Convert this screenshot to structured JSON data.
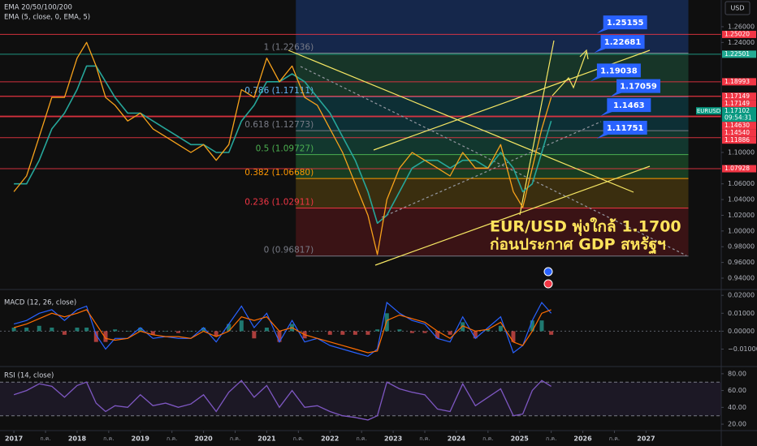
{
  "chart_data": {
    "type": "line",
    "currency": "USD",
    "x": [
      2017.0,
      2017.2,
      2017.4,
      2017.6,
      2017.8,
      2018.0,
      2018.15,
      2018.3,
      2018.45,
      2018.6,
      2018.8,
      2019.0,
      2019.2,
      2019.4,
      2019.6,
      2019.8,
      2020.0,
      2020.2,
      2020.4,
      2020.6,
      2020.8,
      2021.0,
      2021.2,
      2021.4,
      2021.6,
      2021.8,
      2022.0,
      2022.2,
      2022.4,
      2022.6,
      2022.75,
      2022.9,
      2023.1,
      2023.3,
      2023.5,
      2023.7,
      2023.9,
      2024.1,
      2024.3,
      2024.5,
      2024.7,
      2024.9,
      2025.05,
      2025.2,
      2025.35,
      2025.5
    ],
    "xlim": [
      2016.78,
      2028.19
    ],
    "xticks": [
      2017,
      {
        "value": 2017.5,
        "label": "ก.ค."
      },
      2018,
      {
        "value": 2018.5,
        "label": "ก.ค."
      },
      2019,
      {
        "value": 2019.5,
        "label": "ก.ค."
      },
      2020,
      {
        "value": 2020.5,
        "label": "ก.ค."
      },
      2021,
      {
        "value": 2021.5,
        "label": "ก.ค."
      },
      2022,
      {
        "value": 2022.5,
        "label": "ก.ค."
      },
      2023,
      {
        "value": 2023.5,
        "label": "ก.ค."
      },
      2024,
      {
        "value": 2024.5,
        "label": "ก.ค."
      },
      2025,
      {
        "value": 2025.5,
        "label": "ก.ค."
      },
      2026,
      {
        "value": 2026.5,
        "label": "ก.ค."
      },
      2027
    ],
    "ylim": [
      0.9276,
      1.294
    ],
    "yticks": [
      {
        "value": 1.26,
        "label": "1.26000"
      },
      {
        "value": 1.24,
        "label": "1.24000"
      },
      {
        "value": 1.1,
        "label": "1.10000"
      },
      {
        "value": 1.06,
        "label": "1.06000"
      },
      {
        "value": 1.04,
        "label": "1.04000"
      },
      {
        "value": 1.02,
        "label": "1.02000"
      },
      {
        "value": 1.0,
        "label": "1.00000"
      },
      {
        "value": 0.98,
        "label": "0.98000"
      },
      {
        "value": 0.96,
        "label": "0.96000"
      },
      {
        "value": 0.94,
        "label": "0.94000"
      }
    ],
    "series": [
      {
        "name": "EMA 20/50/100/200",
        "color": "#26a69a",
        "values": [
          1.06,
          1.06,
          1.09,
          1.13,
          1.15,
          1.18,
          1.21,
          1.21,
          1.19,
          1.17,
          1.15,
          1.15,
          1.14,
          1.13,
          1.12,
          1.11,
          1.11,
          1.1,
          1.1,
          1.14,
          1.16,
          1.19,
          1.19,
          1.2,
          1.19,
          1.17,
          1.15,
          1.12,
          1.09,
          1.05,
          1.01,
          1.02,
          1.05,
          1.08,
          1.09,
          1.09,
          1.08,
          1.09,
          1.09,
          1.08,
          1.1,
          1.08,
          1.05,
          1.06,
          1.1,
          1.14
        ]
      },
      {
        "name": "EMA (5, close, 0, EMA, 5)",
        "color": "#f7a21b",
        "values": [
          1.05,
          1.07,
          1.12,
          1.17,
          1.17,
          1.22,
          1.24,
          1.21,
          1.17,
          1.16,
          1.14,
          1.15,
          1.13,
          1.12,
          1.11,
          1.1,
          1.11,
          1.09,
          1.11,
          1.18,
          1.17,
          1.22,
          1.19,
          1.21,
          1.17,
          1.16,
          1.13,
          1.1,
          1.06,
          1.02,
          0.97,
          1.04,
          1.08,
          1.1,
          1.09,
          1.08,
          1.07,
          1.1,
          1.08,
          1.08,
          1.11,
          1.05,
          1.03,
          1.08,
          1.13,
          1.17
        ]
      }
    ],
    "headline": [
      "EUR/USD พุ่งใกล้ 1.1700",
      "ก่อนประกาศ GDP สหรัฐฯ"
    ],
    "fibonacci": {
      "x": [
        2021.46,
        2027.67
      ],
      "top_band_color": "#172d5a",
      "levels": [
        {
          "value": 1.22636,
          "label": "1 (1.22636)",
          "color": "#787b86",
          "band": "#1b4332"
        },
        {
          "value": 1.17111,
          "label": "0.786 (1.17111)",
          "color": "#64b5f6",
          "band": "#0e3b43"
        },
        {
          "value": 1.12773,
          "label": "0.618 (1.12773)",
          "color": "#787b86",
          "band": "#14463a"
        },
        {
          "value": 1.09727,
          "label": "0.5 (1.09727)",
          "color": "#4caf50",
          "band": "#1c4d2a"
        },
        {
          "value": 1.0668,
          "label": "0.382 (1.06680)",
          "color": "#ff9800",
          "band": "#4a3a10"
        },
        {
          "value": 1.02911,
          "label": "0.236 (1.02911)",
          "color": "#f23645",
          "band": "#4a1518"
        },
        {
          "value": 0.96817,
          "label": "0 (0.96817)",
          "color": "#787b86",
          "band": "#4a1518"
        }
      ]
    },
    "levels": [
      {
        "value": 1.2502,
        "label": "1.25020",
        "color": "#f23645"
      },
      {
        "value": 1.22501,
        "label": "1.22501",
        "color": "#22ab94"
      },
      {
        "value": 1.18993,
        "label": "1.18993",
        "color": "#f23645"
      },
      {
        "value": 1.17149,
        "label": "1.17149",
        "color": "#f23645"
      },
      {
        "value": 1.17149,
        "label": "1.17149",
        "color": "#f23645"
      },
      {
        "value": 1.1463,
        "label": "1.14630",
        "color": "#f23645"
      },
      {
        "value": 1.1454,
        "label": "1.14540",
        "color": "#f23645"
      },
      {
        "value": 1.11886,
        "label": "1.11886",
        "color": "#f23645"
      },
      {
        "value": 1.07928,
        "label": "1.07928",
        "color": "#f23645"
      }
    ],
    "last_price": {
      "symbol": "EURUSD",
      "value": 1.17102,
      "time": "09:54:31",
      "color": "#089981"
    },
    "callouts": [
      {
        "value": 1.25155,
        "x": 2026.22
      },
      {
        "value": 1.22681,
        "x": 2026.18
      },
      {
        "value": 1.19038,
        "x": 2026.12
      },
      {
        "value": 1.17059,
        "x": 2026.43
      },
      {
        "value": 1.1463,
        "x": 2026.28
      },
      {
        "value": 1.11751,
        "x": 2026.22
      }
    ],
    "callout_color": "#2962ff",
    "macd": {
      "title": "MACD (12, 26, close)",
      "ylim": [
        -0.0188,
        0.0228
      ],
      "yticks": [
        {
          "value": 0.02,
          "label": "0.02000"
        },
        {
          "value": 0.01,
          "label": "0.01000"
        },
        {
          "value": 0,
          "label": "0.00000"
        },
        {
          "value": -0.01,
          "label": "−0.01000"
        }
      ],
      "macd_color": "#2962ff",
      "signal_color": "#ff6d00",
      "values": [
        0.004,
        0.006,
        0.01,
        0.012,
        0.006,
        0.012,
        0.014,
        -0.002,
        -0.01,
        -0.004,
        -0.004,
        0.002,
        -0.004,
        -0.003,
        -0.004,
        -0.004,
        0.002,
        -0.006,
        0.004,
        0.014,
        0.002,
        0.01,
        -0.006,
        0.006,
        -0.006,
        -0.004,
        -0.008,
        -0.01,
        -0.012,
        -0.014,
        -0.01,
        0.016,
        0.01,
        0.006,
        0.004,
        -0.004,
        -0.006,
        0.008,
        -0.004,
        0.002,
        0.008,
        -0.012,
        -0.008,
        0.006,
        0.016,
        0.01
      ],
      "signal": [
        0.002,
        0.004,
        0.007,
        0.01,
        0.008,
        0.01,
        0.012,
        0.004,
        -0.004,
        -0.005,
        -0.004,
        0.0,
        -0.002,
        -0.003,
        -0.003,
        -0.004,
        0.0,
        -0.003,
        0.0,
        0.008,
        0.006,
        0.008,
        0.0,
        0.002,
        -0.002,
        -0.004,
        -0.006,
        -0.008,
        -0.01,
        -0.012,
        -0.011,
        0.006,
        0.009,
        0.007,
        0.005,
        0.0,
        -0.004,
        0.003,
        0.0,
        0.001,
        0.005,
        -0.006,
        -0.008,
        0.0,
        0.01,
        0.012
      ],
      "histogram": [
        0.002,
        0.002,
        0.003,
        0.002,
        -0.002,
        0.002,
        0.002,
        -0.006,
        -0.006,
        0.001,
        0,
        0.002,
        -0.002,
        0,
        -0.001,
        0,
        0.002,
        -0.003,
        0.004,
        0.006,
        -0.004,
        0.002,
        -0.006,
        0.004,
        -0.004,
        0,
        -0.002,
        -0.002,
        -0.002,
        -0.002,
        0.001,
        0.01,
        0.001,
        -0.001,
        -0.001,
        -0.004,
        -0.002,
        0.005,
        -0.004,
        0.001,
        0.003,
        -0.006,
        0,
        0.006,
        0.006,
        -0.002
      ]
    },
    "rsi": {
      "title": "RSI (14, close)",
      "ylim": [
        13.3,
        87.6
      ],
      "band": [
        30,
        70
      ],
      "yticks": [
        {
          "value": 80,
          "label": "80.00"
        },
        {
          "value": 60,
          "label": "60.00"
        },
        {
          "value": 40,
          "label": "40.00"
        },
        {
          "value": 20,
          "label": "20.00"
        }
      ],
      "color": "#7e57c2",
      "values": [
        55,
        60,
        68,
        65,
        52,
        66,
        70,
        45,
        35,
        42,
        40,
        55,
        42,
        45,
        40,
        44,
        55,
        35,
        58,
        72,
        52,
        66,
        40,
        60,
        40,
        42,
        35,
        30,
        28,
        25,
        30,
        70,
        62,
        58,
        55,
        38,
        35,
        68,
        42,
        52,
        62,
        30,
        32,
        60,
        72,
        65
      ]
    }
  }
}
